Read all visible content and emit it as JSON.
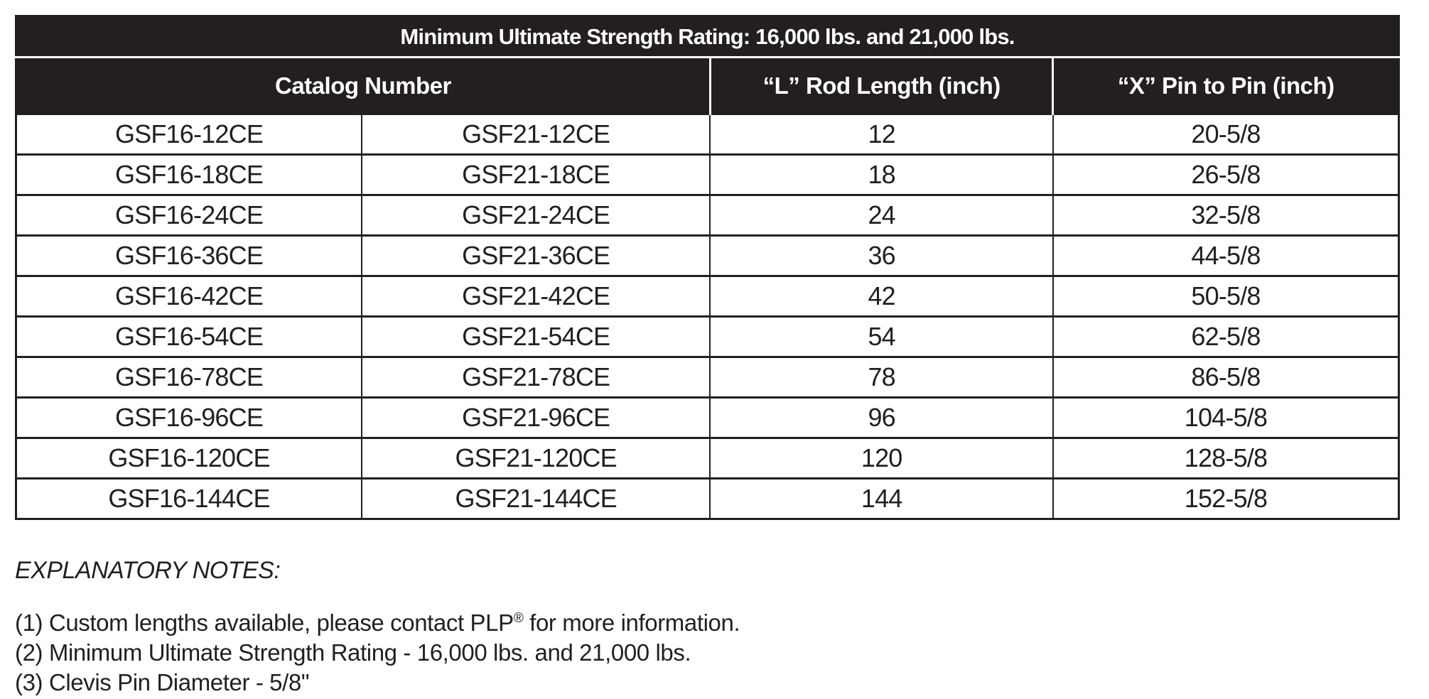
{
  "colors": {
    "header_background": "#231f20",
    "header_text": "#ffffff",
    "body_text": "#231f20",
    "page_background": "#ffffff"
  },
  "table": {
    "title": "Minimum Ultimate Strength Rating: 16,000 lbs. and 21,000 lbs.",
    "headers": {
      "catalog": "Catalog Number",
      "rod_length": "“L” Rod Length (inch)",
      "pin_to_pin": "“X” Pin to Pin (inch)"
    },
    "rows": [
      {
        "catalog_16": "GSF16-12CE",
        "catalog_21": "GSF21-12CE",
        "rod_length": "12",
        "pin_to_pin": "20-5/8"
      },
      {
        "catalog_16": "GSF16-18CE",
        "catalog_21": "GSF21-18CE",
        "rod_length": "18",
        "pin_to_pin": "26-5/8"
      },
      {
        "catalog_16": "GSF16-24CE",
        "catalog_21": "GSF21-24CE",
        "rod_length": "24",
        "pin_to_pin": "32-5/8"
      },
      {
        "catalog_16": "GSF16-36CE",
        "catalog_21": "GSF21-36CE",
        "rod_length": "36",
        "pin_to_pin": "44-5/8"
      },
      {
        "catalog_16": "GSF16-42CE",
        "catalog_21": "GSF21-42CE",
        "rod_length": "42",
        "pin_to_pin": "50-5/8"
      },
      {
        "catalog_16": "GSF16-54CE",
        "catalog_21": "GSF21-54CE",
        "rod_length": "54",
        "pin_to_pin": "62-5/8"
      },
      {
        "catalog_16": "GSF16-78CE",
        "catalog_21": "GSF21-78CE",
        "rod_length": "78",
        "pin_to_pin": "86-5/8"
      },
      {
        "catalog_16": "GSF16-96CE",
        "catalog_21": "GSF21-96CE",
        "rod_length": "96",
        "pin_to_pin": "104-5/8"
      },
      {
        "catalog_16": "GSF16-120CE",
        "catalog_21": "GSF21-120CE",
        "rod_length": "120",
        "pin_to_pin": "128-5/8"
      },
      {
        "catalog_16": "GSF16-144CE",
        "catalog_21": "GSF21-144CE",
        "rod_length": "144",
        "pin_to_pin": "152-5/8"
      }
    ]
  },
  "notes": {
    "heading": "EXPLANATORY NOTES:",
    "note1_prefix": "(1) Custom lengths available, please contact PLP",
    "note1_sup": "®",
    "note1_suffix": " for more information.",
    "note2": "(2) Minimum Ultimate Strength Rating - 16,000 lbs. and 21,000 lbs.",
    "note3": "(3) Clevis Pin Diameter - 5/8\""
  }
}
